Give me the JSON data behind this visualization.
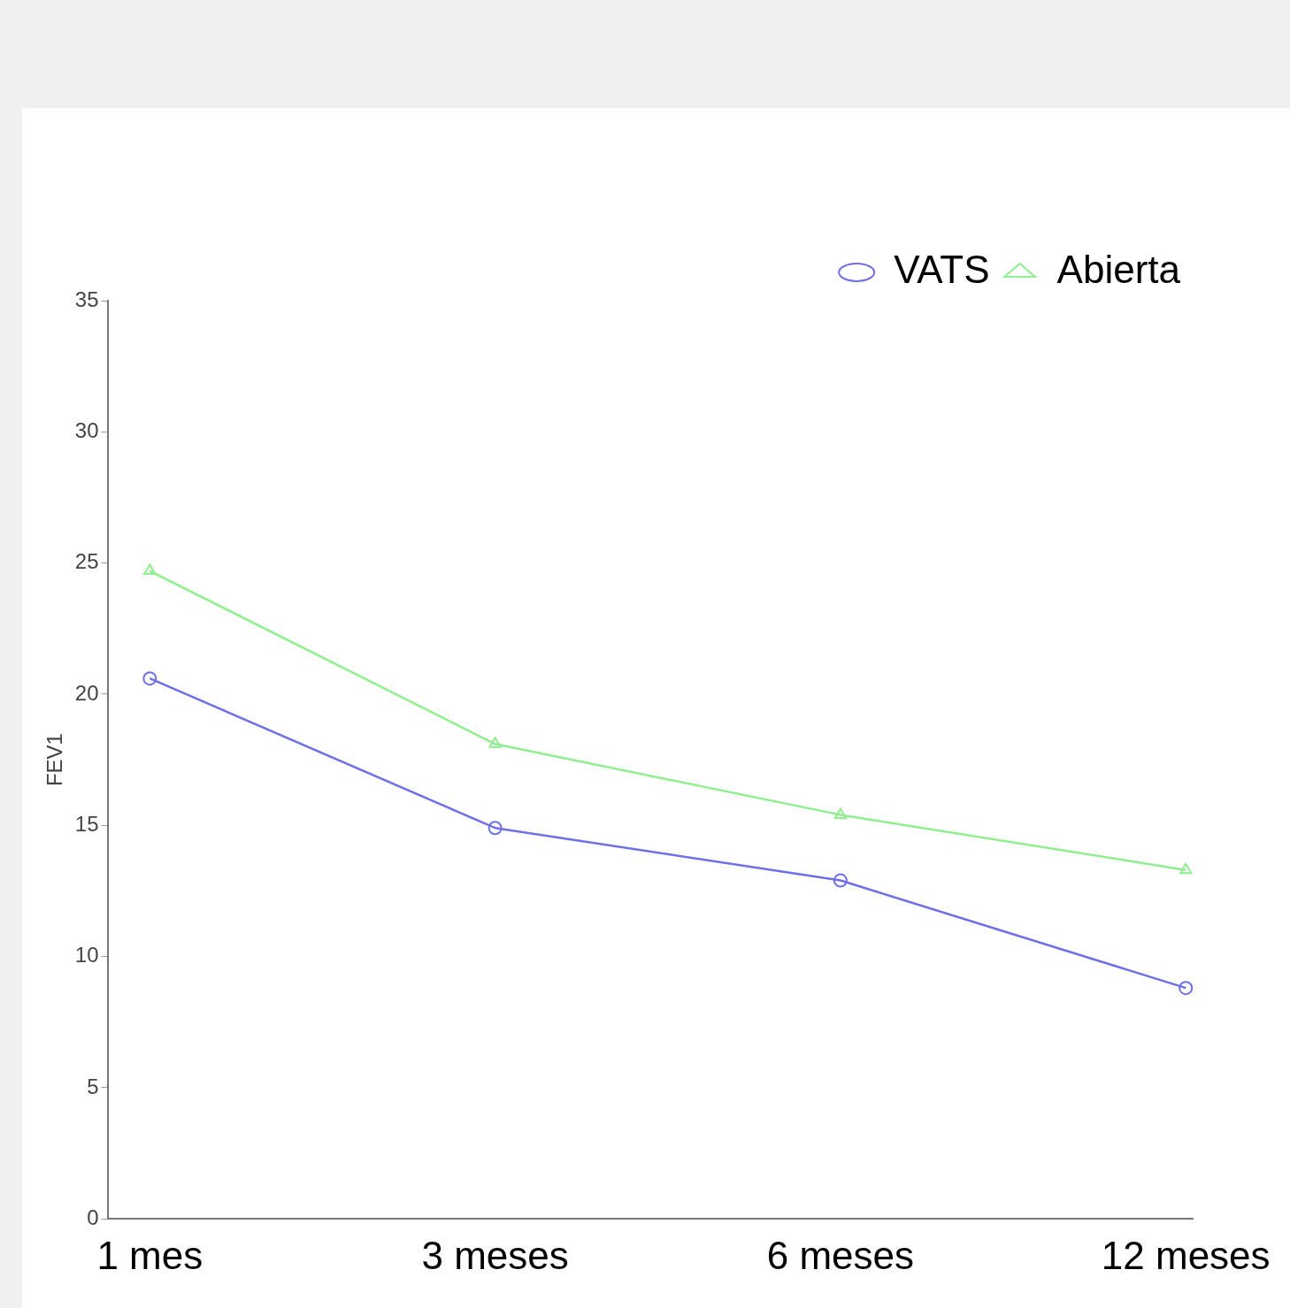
{
  "chart_data": {
    "type": "line",
    "ylabel": "FEV1",
    "categories": [
      "1 mes",
      "3 meses",
      "6 meses",
      "12 meses"
    ],
    "ylim": [
      0,
      35
    ],
    "yticks": [
      0,
      5,
      10,
      15,
      20,
      25,
      30,
      35
    ],
    "grid": false,
    "legend": "top right",
    "series": [
      {
        "name": "VATS",
        "color": "#6f6fe8",
        "marker": "circle",
        "values": [
          20.6,
          14.9,
          12.9,
          8.8
        ]
      },
      {
        "name": "Abierta",
        "color": "#90ee90",
        "marker": "triangle",
        "values": [
          24.7,
          18.1,
          15.4,
          13.3
        ]
      }
    ]
  }
}
